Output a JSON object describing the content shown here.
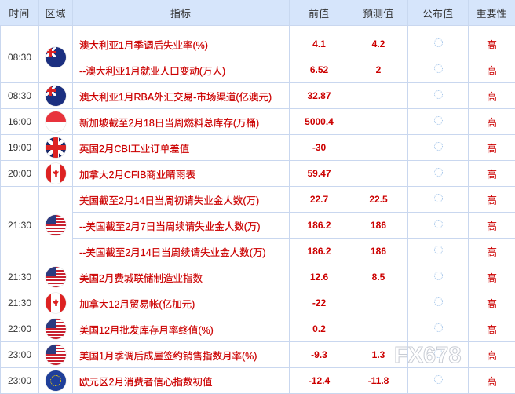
{
  "header": [
    "时间",
    "区域",
    "指标",
    "前值",
    "预测值",
    "公布值",
    "重要性"
  ],
  "rows": [
    {
      "time": "08:30",
      "flag": "australia",
      "indicator": "澳大利亚1月季调后失业率(%)",
      "prev": "4.1",
      "forecast": "4.2",
      "actual": "",
      "importance": "高"
    },
    {
      "time": "08:30",
      "flag": "australia",
      "indicator": "--澳大利亚1月就业人口变动(万人)",
      "prev": "6.52",
      "forecast": "2",
      "actual": "",
      "importance": "高"
    },
    {
      "time": "08:30",
      "flag": "australia",
      "indicator": "澳大利亚1月RBA外汇交易-市场渠道(亿澳元)",
      "prev": "32.87",
      "forecast": "",
      "actual": "",
      "importance": "高"
    },
    {
      "time": "16:00",
      "flag": "singapore",
      "indicator": "新加坡截至2月18日当周燃料总库存(万桶)",
      "prev": "5000.4",
      "forecast": "",
      "actual": "",
      "importance": "高"
    },
    {
      "time": "19:00",
      "flag": "uk",
      "indicator": "英国2月CBI工业订单差值",
      "prev": "-30",
      "forecast": "",
      "actual": "",
      "importance": "高"
    },
    {
      "time": "20:00",
      "flag": "canada",
      "indicator": "加拿大2月CFIB商业睛雨表",
      "prev": "59.47",
      "forecast": "",
      "actual": "",
      "importance": "高"
    },
    {
      "time": "21:30",
      "flag": "us",
      "indicator": "美国截至2月14日当周初请失业金人数(万)",
      "prev": "22.7",
      "forecast": "22.5",
      "actual": "",
      "importance": "高"
    },
    {
      "time": "21:30",
      "flag": "us",
      "indicator": "--美国截至2月7日当周续请失业金人数(万)",
      "prev": "186.2",
      "forecast": "186",
      "actual": "",
      "importance": "高"
    },
    {
      "time": "21:30",
      "flag": "us",
      "indicator": "--美国截至2月14日当周续请失业金人数(万)",
      "prev": "186.2",
      "forecast": "186",
      "actual": "",
      "importance": "高"
    },
    {
      "time": "21:30",
      "flag": "us",
      "indicator": "美国2月费城联储制造业指数",
      "prev": "12.6",
      "forecast": "8.5",
      "actual": "",
      "importance": "高"
    },
    {
      "time": "21:30",
      "flag": "canada",
      "indicator": "加拿大12月贸易帐(亿加元)",
      "prev": "-22",
      "forecast": "",
      "actual": "",
      "importance": "高"
    },
    {
      "time": "22:00",
      "flag": "us",
      "indicator": "美国12月批发库存月率终值(%)",
      "prev": "0.2",
      "forecast": "",
      "actual": "",
      "importance": "高"
    },
    {
      "time": "23:00",
      "flag": "us",
      "indicator": "美国1月季调后成屋签约销售指数月率(%)",
      "prev": "-9.3",
      "forecast": "1.3",
      "actual": "",
      "importance": "高"
    },
    {
      "time": "23:00",
      "flag": "eurozone",
      "indicator": "欧元区2月消费者信心指数初值",
      "prev": "-12.4",
      "forecast": "-11.8",
      "actual": "",
      "importance": "高"
    }
  ],
  "watermark": "FX678",
  "colors": {
    "header_bg": "#d6e5fb",
    "value_red": "#cc0000",
    "border": "#c9d7ef"
  }
}
